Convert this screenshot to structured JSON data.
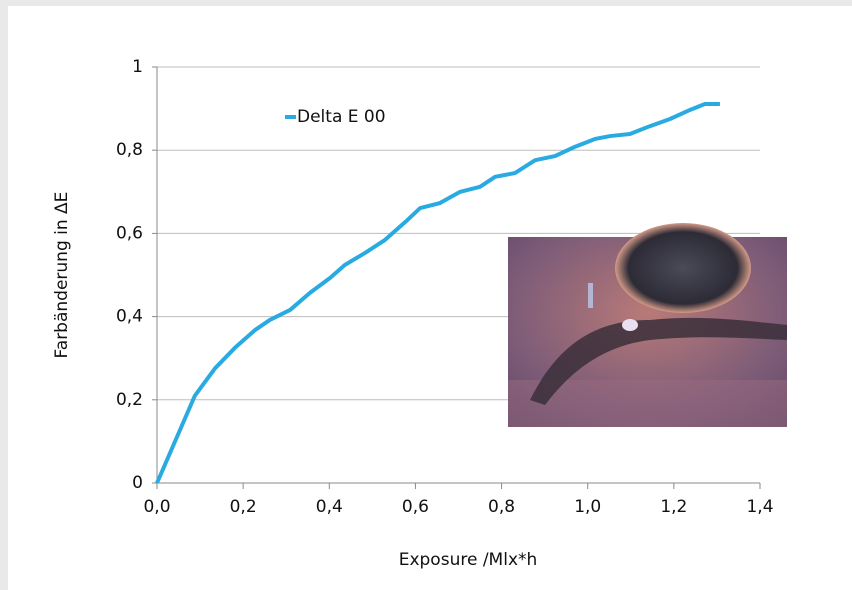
{
  "chart_data": {
    "type": "line",
    "x_label": "Exposure /Mlx*h",
    "y_label": "Farbänderung in ΔE",
    "x": [
      0,
      0.088,
      0.135,
      0.181,
      0.228,
      0.262,
      0.309,
      0.355,
      0.402,
      0.436,
      0.483,
      0.529,
      0.576,
      0.611,
      0.657,
      0.704,
      0.75,
      0.785,
      0.831,
      0.878,
      0.924,
      0.97,
      1.017,
      1.052,
      1.098,
      1.145,
      1.191,
      1.238,
      1.272,
      1.307
    ],
    "series": [
      {
        "name": "Delta E 00",
        "color": "#29abe2",
        "values": [
          0,
          0.21,
          0.276,
          0.325,
          0.368,
          0.392,
          0.416,
          0.457,
          0.493,
          0.524,
          0.553,
          0.584,
          0.627,
          0.661,
          0.673,
          0.7,
          0.712,
          0.736,
          0.745,
          0.776,
          0.786,
          0.808,
          0.827,
          0.834,
          0.839,
          0.858,
          0.875,
          0.897,
          0.911,
          0.911
        ]
      }
    ],
    "xlim": [
      0,
      1.4
    ],
    "ylim": [
      0,
      1
    ],
    "xticks": [
      {
        "value": 0,
        "label": "0,0"
      },
      {
        "value": 0.2,
        "label": "0,2"
      },
      {
        "value": 0.4,
        "label": "0,4"
      },
      {
        "value": 0.6,
        "label": "0,6"
      },
      {
        "value": 0.8,
        "label": "0,8"
      },
      {
        "value": 1,
        "label": "1,0"
      },
      {
        "value": 1.2,
        "label": "1,2"
      },
      {
        "value": 1.4,
        "label": "1,4"
      }
    ],
    "yticks": [
      0,
      {
        "value": 0.2,
        "label": "0,2"
      },
      {
        "value": 0.4,
        "label": "0,4"
      },
      {
        "value": 0.6,
        "label": "0,6"
      },
      {
        "value": 0.8,
        "label": "0,8"
      },
      1
    ],
    "grid": true
  }
}
